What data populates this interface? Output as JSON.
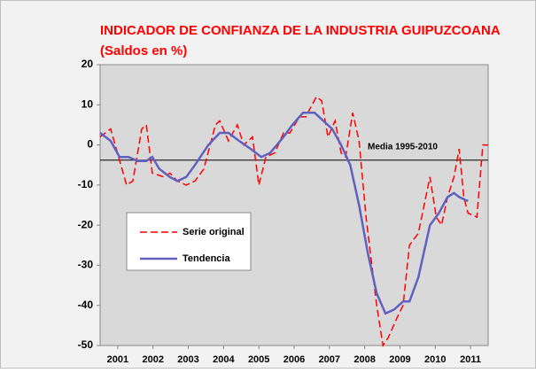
{
  "chart_data": {
    "type": "line",
    "title": "INDICADOR DE CONFIANZA DE LA INDUSTRIA GUIPUZCOANA",
    "subtitle": "(Saldos en %)",
    "xlim": [
      2001,
      2012
    ],
    "xticks": [
      {
        "value": 2001.5,
        "label": "2001"
      },
      {
        "value": 2002.5,
        "label": "2002"
      },
      {
        "value": 2003.5,
        "label": "2003"
      },
      {
        "value": 2004.5,
        "label": "2004"
      },
      {
        "value": 2005.5,
        "label": "2005"
      },
      {
        "value": 2006.5,
        "label": "2006"
      },
      {
        "value": 2007.5,
        "label": "2007"
      },
      {
        "value": 2008.5,
        "label": "2008"
      },
      {
        "value": 2009.5,
        "label": "2009"
      },
      {
        "value": 2010.5,
        "label": "2010"
      },
      {
        "value": 2011.5,
        "label": "2011"
      }
    ],
    "ylim": [
      -50,
      20
    ],
    "yticks": [
      20,
      10,
      0,
      -10,
      -20,
      -30,
      -40,
      -50
    ],
    "reference_line": {
      "label": "Media 1995-2010",
      "value": -3.8
    },
    "series": [
      {
        "name": "Serie original",
        "color": "#ff0000",
        "dash": true,
        "x": [
          2001.0,
          2001.3,
          2001.75,
          2001.93,
          2002.18,
          2002.31,
          2002.48,
          2002.81,
          2002.98,
          2003.19,
          2003.44,
          2003.69,
          2003.94,
          2004.27,
          2004.39,
          2004.64,
          2004.89,
          2005.07,
          2005.32,
          2005.5,
          2005.7,
          2005.95,
          2006.2,
          2006.38,
          2006.65,
          2006.83,
          2007.13,
          2007.28,
          2007.46,
          2007.66,
          2007.83,
          2007.96,
          2008.16,
          2008.34,
          2008.54,
          2008.84,
          2009.02,
          2009.17,
          2009.42,
          2009.59,
          2009.77,
          2010.02,
          2010.35,
          2010.53,
          2010.68,
          2010.85,
          2011.03,
          2011.18,
          2011.31,
          2011.43,
          2011.68,
          2011.85,
          2012.0
        ],
        "values": [
          2,
          4,
          -10,
          -9,
          4,
          5,
          -7,
          -8,
          -7,
          -9,
          -10,
          -9,
          -6,
          5,
          6,
          1,
          5,
          0,
          2,
          -10,
          -3,
          -2,
          3,
          3,
          7,
          7,
          12,
          11,
          2,
          6,
          -2,
          -3,
          8,
          1,
          -18,
          -40,
          -50,
          -48,
          -43,
          -40,
          -25,
          -22,
          -8,
          -18,
          -20,
          -13,
          -8,
          -1,
          -13,
          -17,
          -18,
          0,
          0
        ]
      },
      {
        "name": "Tendencia",
        "color": "#6060c0",
        "dash": false,
        "x": [
          2001.0,
          2001.3,
          2001.55,
          2001.8,
          2002.06,
          2002.31,
          2002.48,
          2002.68,
          2002.98,
          2003.19,
          2003.44,
          2003.69,
          2004.07,
          2004.39,
          2004.64,
          2004.94,
          2005.27,
          2005.57,
          2005.82,
          2006.2,
          2006.45,
          2006.75,
          2007.08,
          2007.33,
          2007.58,
          2007.83,
          2008.09,
          2008.34,
          2008.59,
          2008.84,
          2009.09,
          2009.34,
          2009.59,
          2009.77,
          2010.02,
          2010.35,
          2010.6,
          2010.85,
          2011.03,
          2011.18,
          2011.43
        ],
        "values": [
          3,
          1,
          -3,
          -3,
          -4,
          -4,
          -3,
          -6,
          -8,
          -9,
          -8,
          -5,
          0,
          3,
          3,
          1,
          -1,
          -3,
          -2,
          2,
          5,
          8,
          8,
          6,
          4,
          0,
          -5,
          -15,
          -27,
          -37,
          -42,
          -41,
          -39,
          -39,
          -33,
          -20,
          -17,
          -13,
          -12,
          -13,
          -14
        ]
      }
    ]
  }
}
